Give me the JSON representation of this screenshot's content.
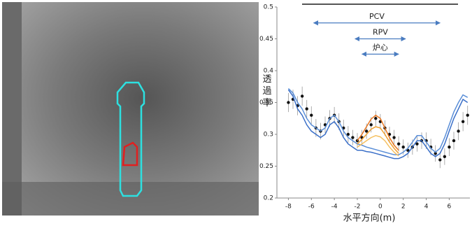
{
  "chart_data": {
    "type": "line",
    "ylabel": "透過率",
    "xlabel": "水平方向(m)",
    "xlim": [
      -9,
      7.8
    ],
    "ylim": [
      0.2,
      0.5
    ],
    "xticks": [
      -8,
      -6,
      -4,
      -2,
      0,
      2,
      4,
      6
    ],
    "yticks": [
      {
        "value": 0.2,
        "label": "0.2"
      },
      0.25,
      {
        "value": 0.3,
        "label": "0.3"
      },
      0.35,
      {
        "value": 0.4,
        "label": "0.4"
      },
      0.45,
      {
        "value": 0.5,
        "label": "0.5"
      }
    ],
    "x": [
      -8,
      -7.6,
      -7.2,
      -6.8,
      -6.4,
      -6,
      -5.6,
      -5.2,
      -4.8,
      -4.4,
      -4,
      -3.6,
      -3.2,
      -2.8,
      -2.4,
      -2,
      -1.6,
      -1.2,
      -0.8,
      -0.4,
      0,
      0.4,
      0.8,
      1.2,
      1.6,
      2,
      2.4,
      2.8,
      3.2,
      3.6,
      4,
      4.4,
      4.8,
      5.2,
      5.6,
      6,
      6.4,
      6.8,
      7.2,
      7.6
    ],
    "series": [
      {
        "style": "markers",
        "color": "#111111",
        "values": [
          0.35,
          0.355,
          0.345,
          0.36,
          0.34,
          0.33,
          0.31,
          0.305,
          0.315,
          0.325,
          0.33,
          0.32,
          0.31,
          0.3,
          0.295,
          0.29,
          0.295,
          0.305,
          0.315,
          0.325,
          0.32,
          0.31,
          0.3,
          0.295,
          0.285,
          0.28,
          0.275,
          0.28,
          0.285,
          0.29,
          0.29,
          0.28,
          0.27,
          0.26,
          0.265,
          0.28,
          0.29,
          0.305,
          0.32,
          0.33
        ],
        "errors": [
          0.015,
          0.015,
          0.015,
          0.015,
          0.014,
          0.014,
          0.014,
          0.013,
          0.013,
          0.013,
          0.013,
          0.013,
          0.013,
          0.013,
          0.012,
          0.012,
          0.012,
          0.012,
          0.012,
          0.012,
          0.012,
          0.012,
          0.012,
          0.012,
          0.012,
          0.012,
          0.012,
          0.012,
          0.012,
          0.013,
          0.013,
          0.013,
          0.013,
          0.013,
          0.013,
          0.014,
          0.014,
          0.014,
          0.015,
          0.015
        ]
      },
      {
        "style": "line",
        "color": "#3a6fc8",
        "values": [
          0.37,
          0.36,
          0.34,
          0.33,
          0.315,
          0.305,
          0.3,
          0.295,
          0.3,
          0.315,
          0.32,
          0.31,
          0.295,
          0.285,
          0.28,
          0.275,
          0.275,
          0.273,
          0.272,
          0.27,
          0.268,
          0.266,
          0.264,
          0.262,
          0.262,
          0.265,
          0.27,
          0.28,
          0.29,
          0.29,
          0.28,
          0.27,
          0.265,
          0.27,
          0.285,
          0.305,
          0.325,
          0.34,
          0.355,
          0.35
        ]
      },
      {
        "style": "line",
        "color": "#5b8fd8",
        "values": [
          0.372,
          0.365,
          0.35,
          0.34,
          0.325,
          0.315,
          0.31,
          0.305,
          0.31,
          0.325,
          0.33,
          0.32,
          0.305,
          0.295,
          0.29,
          0.285,
          0.283,
          0.28,
          0.278,
          0.276,
          0.274,
          0.272,
          0.27,
          0.268,
          0.268,
          0.272,
          0.278,
          0.288,
          0.298,
          0.298,
          0.288,
          0.278,
          0.272,
          0.278,
          0.295,
          0.315,
          0.335,
          0.35,
          0.362,
          0.358
        ]
      },
      {
        "style": "line",
        "color": "#e87722",
        "values": [
          null,
          null,
          null,
          null,
          null,
          null,
          null,
          null,
          null,
          null,
          null,
          null,
          null,
          null,
          null,
          0.29,
          0.3,
          0.312,
          0.324,
          0.33,
          0.325,
          0.31,
          0.295,
          0.283,
          0.275,
          null,
          null,
          null,
          null,
          null,
          null,
          null,
          null,
          null,
          null,
          null,
          null,
          null,
          null,
          null
        ]
      },
      {
        "style": "line",
        "color": "#f0a030",
        "values": [
          null,
          null,
          null,
          null,
          null,
          null,
          null,
          null,
          null,
          null,
          null,
          null,
          null,
          null,
          null,
          0.285,
          0.292,
          0.3,
          0.308,
          0.312,
          0.31,
          0.3,
          0.288,
          0.278,
          0.27,
          null,
          null,
          null,
          null,
          null,
          null,
          null,
          null,
          null,
          null,
          null,
          null,
          null,
          null,
          null
        ]
      },
      {
        "style": "line",
        "color": "#f5c060",
        "values": [
          null,
          null,
          null,
          null,
          null,
          null,
          null,
          null,
          null,
          null,
          null,
          null,
          null,
          null,
          null,
          0.28,
          0.285,
          0.29,
          0.295,
          0.298,
          0.296,
          0.29,
          0.28,
          0.272,
          0.266,
          null,
          null,
          null,
          null,
          null,
          null,
          null,
          null,
          null,
          null,
          null,
          null,
          null,
          null,
          null
        ]
      }
    ],
    "annotations": [
      {
        "text": "PCV",
        "from": -5.8,
        "to": 5.2,
        "y": 0.475
      },
      {
        "text": "RPV",
        "from": -2.2,
        "to": 2.2,
        "y": 0.45
      },
      {
        "text": "炉心",
        "from": -1.6,
        "to": 1.6,
        "y": 0.426
      }
    ]
  }
}
